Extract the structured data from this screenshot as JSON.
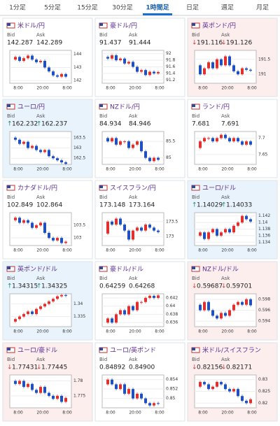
{
  "tabs": [
    "1分足",
    "5分足",
    "15分足",
    "30分足",
    "1時間足",
    "日足",
    "週足",
    "月足"
  ],
  "active_tab": "1時間足",
  "bid_label": "Bid",
  "ask_label": "Ask",
  "cards": [
    {
      "name": "米ドル/円",
      "bid": "142.287",
      "ask": "142.289",
      "trend": "flat",
      "yticks": [
        144,
        143,
        142
      ],
      "ylim": [
        141.8,
        144.3
      ],
      "xlabels": [
        "8:00",
        "20:00",
        "8:00"
      ],
      "values": [
        143.6,
        143.8,
        143.5,
        143.7,
        143.9,
        143.6,
        143.4,
        143.5,
        143.0,
        142.7,
        142.4,
        142.3,
        142.5,
        142.3
      ]
    },
    {
      "name": "豪ドル/円",
      "bid": "91.437",
      "ask": "91.444",
      "trend": "flat",
      "yticks": [
        92,
        91.8,
        91.6,
        91.4,
        91.2
      ],
      "ylim": [
        91.1,
        92.1
      ],
      "xlabels": [
        "8:00",
        "20:00",
        "8:00"
      ],
      "values": [
        91.9,
        91.85,
        91.95,
        91.8,
        91.85,
        91.7,
        91.75,
        91.6,
        91.45,
        91.5,
        91.35,
        91.45,
        91.4,
        91.44
      ]
    },
    {
      "name": "英ポンド/円",
      "bid": "191.116",
      "ask": "191.126",
      "arrow": "↓",
      "trend": "down",
      "yticks": [
        191.5,
        191
      ],
      "ylim": [
        190.7,
        191.8
      ],
      "xlabels": [
        "8:00",
        "20:00",
        "8:00"
      ],
      "values": [
        191.3,
        191.0,
        191.2,
        191.4,
        191.2,
        191.5,
        191.3,
        191.6,
        191.3,
        191.1,
        191.0,
        191.2,
        191.15,
        191.12
      ]
    },
    {
      "name": "ユーロ/円",
      "bid": "162.232",
      "ask": "162.237",
      "arrow": "↑",
      "trend": "up",
      "yticks": [
        163.5,
        163,
        162.5
      ],
      "ylim": [
        162.2,
        163.8
      ],
      "xlabels": [
        "8:00",
        "20:00",
        "8:00"
      ],
      "values": [
        163.5,
        163.4,
        163.2,
        163.3,
        163.0,
        163.1,
        162.9,
        162.8,
        162.9,
        162.6,
        162.5,
        162.4,
        162.3,
        162.23
      ]
    },
    {
      "name": "NZドル/円",
      "bid": "84.934",
      "ask": "84.946",
      "trend": "flat",
      "yticks": [
        85.5,
        85
      ],
      "ylim": [
        84.8,
        85.8
      ],
      "xlabels": [
        "8:00",
        "20:00",
        "8:00"
      ],
      "values": [
        85.6,
        85.5,
        85.6,
        85.4,
        85.5,
        85.5,
        85.3,
        85.4,
        85.5,
        85.2,
        85.0,
        84.9,
        85.0,
        84.94
      ]
    },
    {
      "name": "ランド/円",
      "bid": "7.681",
      "ask": "7.691",
      "trend": "flat",
      "yticks": [
        7.7,
        7.65
      ],
      "ylim": [
        7.62,
        7.72
      ],
      "xlabels": [
        "8:00",
        "20:00",
        "8:00"
      ],
      "values": [
        7.67,
        7.69,
        7.7,
        7.7,
        7.69,
        7.7,
        7.71,
        7.7,
        7.69,
        7.7,
        7.69,
        7.68,
        7.69,
        7.68
      ]
    },
    {
      "name": "カナダドル/円",
      "bid": "102.849",
      "ask": "102.864",
      "trend": "flat",
      "yticks": [
        103.5,
        103
      ],
      "ylim": [
        102.7,
        104
      ],
      "xlabels": [
        "8:00",
        "20:00",
        "8:00"
      ],
      "values": [
        103.7,
        103.8,
        103.6,
        103.7,
        103.6,
        103.4,
        103.5,
        103.6,
        103.2,
        103.0,
        102.9,
        103.0,
        102.8,
        102.85
      ]
    },
    {
      "name": "スイスフラン/円",
      "bid": "173.148",
      "ask": "173.164",
      "trend": "flat",
      "yticks": [
        173.5,
        173
      ],
      "ylim": [
        172.7,
        173.8
      ],
      "xlabels": [
        "8:00",
        "20:00",
        "8:00"
      ],
      "values": [
        173.1,
        173.5,
        173.4,
        173.6,
        173.4,
        173.2,
        172.9,
        173.2,
        173.3,
        173.2,
        173.4,
        173.3,
        173.2,
        173.15
      ]
    },
    {
      "name": "ユーロ/ドル",
      "bid": "1.14029",
      "ask": "1.14033",
      "arrow": "↑",
      "trend": "up",
      "yticks": [
        1.142,
        1.14,
        1.138,
        1.136,
        1.134
      ],
      "ylim": [
        1.133,
        1.143
      ],
      "xlabels": [
        "8:00",
        "20:00",
        "8:00"
      ],
      "values": [
        1.136,
        1.137,
        1.135,
        1.137,
        1.138,
        1.136,
        1.137,
        1.138,
        1.137,
        1.139,
        1.14,
        1.142,
        1.141,
        1.1403
      ]
    },
    {
      "name": "英ポンド/ドル",
      "bid": "1.34315",
      "ask": "1.34325",
      "arrow": "↑",
      "trend": "up",
      "yticks": [
        1.34,
        1.335
      ],
      "ylim": [
        1.331,
        1.344
      ],
      "xlabels": [
        "8:00",
        "20:00",
        "8:00"
      ],
      "values": [
        1.333,
        1.334,
        1.335,
        1.336,
        1.337,
        1.336,
        1.338,
        1.339,
        1.34,
        1.341,
        1.342,
        1.343,
        1.3435,
        1.3432
      ]
    },
    {
      "name": "豪ドル/ドル",
      "bid": "0.64259",
      "ask": "0.64268",
      "trend": "flat",
      "yticks": [
        0.642,
        0.64,
        0.638,
        0.636
      ],
      "ylim": [
        0.635,
        0.643
      ],
      "xlabels": [
        "8:00",
        "20:00",
        "8:00"
      ],
      "values": [
        0.636,
        0.637,
        0.636,
        0.638,
        0.639,
        0.638,
        0.64,
        0.639,
        0.641,
        0.641,
        0.642,
        0.6425,
        0.642,
        0.6426
      ]
    },
    {
      "name": "NZドル/ドル",
      "bid": "0.59687",
      "ask": "0.59701",
      "arrow": "↓",
      "trend": "down",
      "yticks": [
        0.598,
        0.596,
        0.594
      ],
      "ylim": [
        0.593,
        0.599
      ],
      "xlabels": [
        "8:00",
        "20:00",
        "8:00"
      ],
      "values": [
        0.597,
        0.596,
        0.5975,
        0.596,
        0.595,
        0.5945,
        0.5955,
        0.595,
        0.596,
        0.597,
        0.5975,
        0.597,
        0.598,
        0.5969
      ]
    },
    {
      "name": "ユーロ/豪ドル",
      "bid": "1.77431",
      "ask": "1.77445",
      "arrow": "↓",
      "trend": "down",
      "yticks": [
        1.78,
        1.775
      ],
      "ylim": [
        1.771,
        1.782
      ],
      "xlabels": [
        "8:00",
        "20:00",
        "8:00"
      ],
      "values": [
        1.78,
        1.779,
        1.78,
        1.778,
        1.779,
        1.777,
        1.776,
        1.778,
        1.776,
        1.775,
        1.774,
        1.775,
        1.773,
        1.7743
      ]
    },
    {
      "name": "ユーロ/英ポンド",
      "bid": "0.84892",
      "ask": "0.84900",
      "trend": "flat",
      "yticks": [
        0.854,
        0.852,
        0.85
      ],
      "ylim": [
        0.848,
        0.855
      ],
      "xlabels": [
        "8:00",
        "20:00",
        "8:00"
      ],
      "values": [
        0.853,
        0.854,
        0.853,
        0.852,
        0.853,
        0.851,
        0.852,
        0.85,
        0.851,
        0.85,
        0.849,
        0.8485,
        0.849,
        0.8489
      ]
    },
    {
      "name": "米ドル/スイスフラン",
      "bid": "0.82156",
      "ask": "0.82171",
      "arrow": "↓",
      "trend": "down",
      "yticks": [
        0.83,
        0.825,
        0.82
      ],
      "ylim": [
        0.818,
        0.832
      ],
      "xlabels": [
        "8:00",
        "20:00",
        "8:00"
      ],
      "values": [
        0.827,
        0.829,
        0.828,
        0.826,
        0.827,
        0.829,
        0.828,
        0.826,
        0.825,
        0.826,
        0.823,
        0.821,
        0.82,
        0.8216
      ]
    }
  ]
}
